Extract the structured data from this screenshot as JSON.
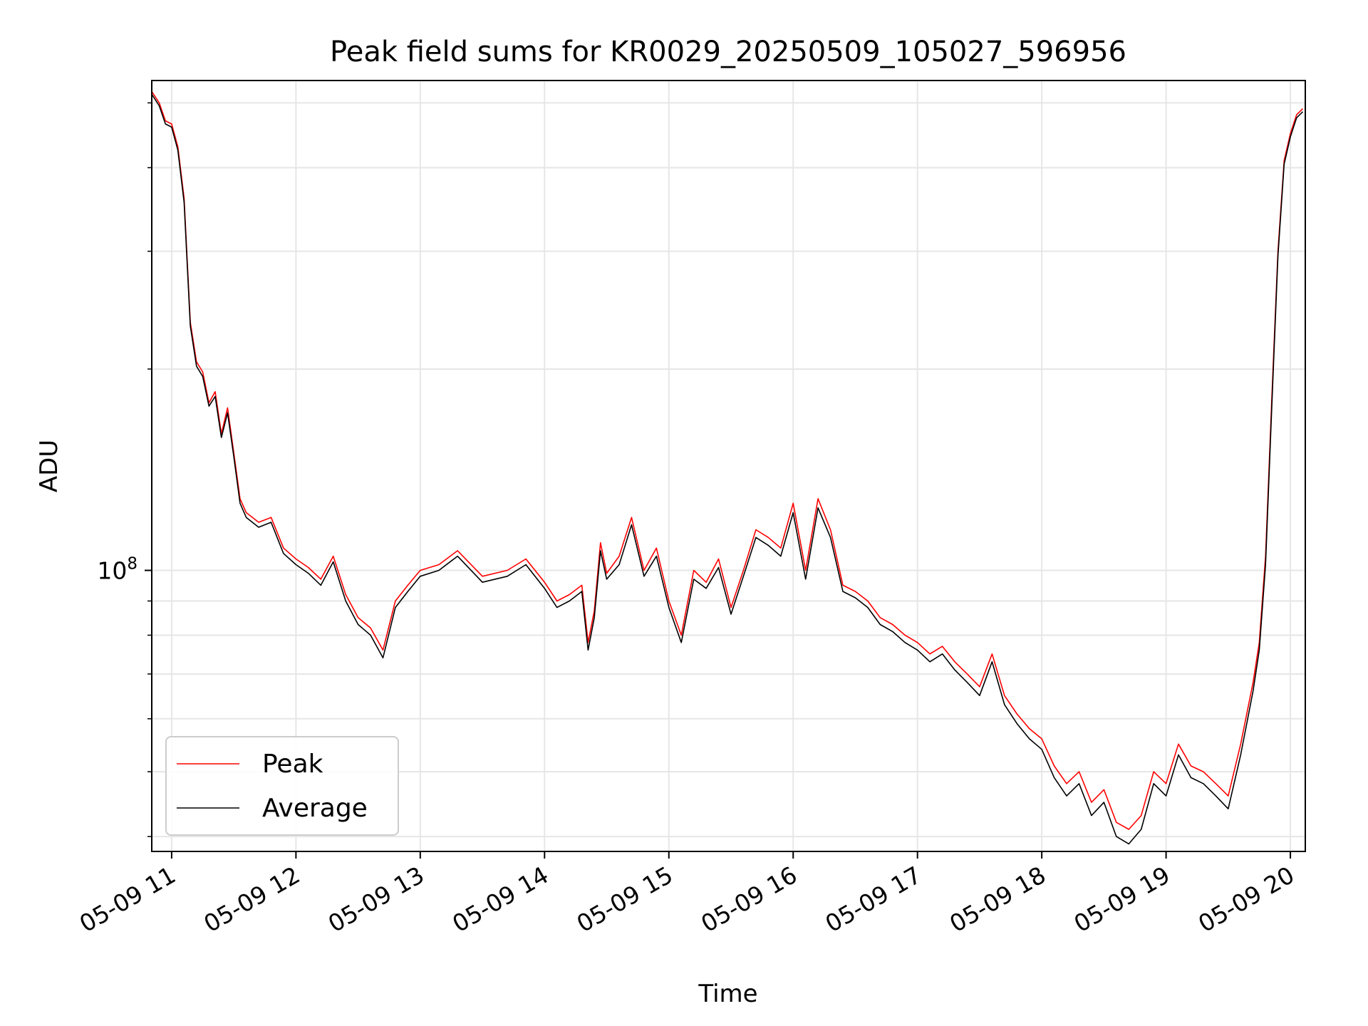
{
  "chart_data": {
    "type": "line",
    "title": "Peak field sums for KR0029_20250509_105027_596956",
    "xlabel": "Time",
    "ylabel": "ADU",
    "yscale": "log",
    "ylim": [
      38000000,
      540000000
    ],
    "xlim": [
      10.84,
      20.12
    ],
    "x_unit": "hour of day 2025-05-09",
    "grid": true,
    "legend_position": "lower-left",
    "x_ticks": [
      {
        "value": 11,
        "label": "05-09 11"
      },
      {
        "value": 12,
        "label": "05-09 12"
      },
      {
        "value": 13,
        "label": "05-09 13"
      },
      {
        "value": 14,
        "label": "05-09 14"
      },
      {
        "value": 15,
        "label": "05-09 15"
      },
      {
        "value": 16,
        "label": "05-09 16"
      },
      {
        "value": 17,
        "label": "05-09 17"
      },
      {
        "value": 18,
        "label": "05-09 18"
      },
      {
        "value": 19,
        "label": "05-09 19"
      },
      {
        "value": 20,
        "label": "05-09 20"
      }
    ],
    "y_major_ticks": [
      {
        "value": 100000000,
        "label_base": "10",
        "label_exp": "8"
      }
    ],
    "y_minor_ticks": [
      40000000,
      50000000,
      60000000,
      70000000,
      80000000,
      90000000,
      200000000,
      300000000,
      400000000,
      500000000
    ],
    "series": [
      {
        "name": "Peak",
        "color": "#ff0000",
        "x": [
          10.84,
          10.9,
          10.95,
          11.0,
          11.05,
          11.1,
          11.15,
          11.2,
          11.25,
          11.3,
          11.35,
          11.4,
          11.45,
          11.5,
          11.55,
          11.6,
          11.7,
          11.8,
          11.9,
          12.0,
          12.1,
          12.2,
          12.3,
          12.4,
          12.5,
          12.6,
          12.7,
          12.8,
          12.9,
          13.0,
          13.15,
          13.3,
          13.5,
          13.7,
          13.85,
          14.0,
          14.1,
          14.2,
          14.3,
          14.35,
          14.4,
          14.45,
          14.5,
          14.6,
          14.7,
          14.8,
          14.9,
          15.0,
          15.1,
          15.2,
          15.3,
          15.4,
          15.5,
          15.6,
          15.7,
          15.8,
          15.9,
          16.0,
          16.1,
          16.2,
          16.3,
          16.4,
          16.5,
          16.6,
          16.7,
          16.8,
          16.9,
          17.0,
          17.1,
          17.2,
          17.3,
          17.4,
          17.5,
          17.6,
          17.7,
          17.8,
          17.9,
          18.0,
          18.1,
          18.2,
          18.3,
          18.4,
          18.5,
          18.6,
          18.7,
          18.8,
          18.9,
          19.0,
          19.1,
          19.2,
          19.3,
          19.4,
          19.5,
          19.6,
          19.7,
          19.75,
          19.8,
          19.85,
          19.9,
          19.95,
          20.0,
          20.05,
          20.1
        ],
        "values": [
          520000000,
          500000000,
          470000000,
          465000000,
          430000000,
          360000000,
          235000000,
          205000000,
          198000000,
          178000000,
          185000000,
          160000000,
          175000000,
          150000000,
          128000000,
          122000000,
          118000000,
          120000000,
          108000000,
          104000000,
          101000000,
          97000000,
          105000000,
          92000000,
          85000000,
          82000000,
          76000000,
          90000000,
          95000000,
          100000000,
          102000000,
          107000000,
          98000000,
          100000000,
          104000000,
          96000000,
          90000000,
          92000000,
          95000000,
          78000000,
          87000000,
          110000000,
          99000000,
          105000000,
          120000000,
          100000000,
          108000000,
          90000000,
          80000000,
          100000000,
          96000000,
          104000000,
          88000000,
          100000000,
          115000000,
          112000000,
          108000000,
          126000000,
          100000000,
          128000000,
          115000000,
          95000000,
          93000000,
          90000000,
          85000000,
          83000000,
          80000000,
          78000000,
          75000000,
          77000000,
          73000000,
          70000000,
          67000000,
          75000000,
          65000000,
          61000000,
          58000000,
          56000000,
          51000000,
          48000000,
          50000000,
          45000000,
          47000000,
          42000000,
          41000000,
          43000000,
          50000000,
          48000000,
          55000000,
          51000000,
          50000000,
          48000000,
          46000000,
          55000000,
          68000000,
          78000000,
          105000000,
          180000000,
          300000000,
          410000000,
          450000000,
          480000000,
          490000000
        ]
      },
      {
        "name": "Average",
        "color": "#000000",
        "x": [
          10.84,
          10.9,
          10.95,
          11.0,
          11.05,
          11.1,
          11.15,
          11.2,
          11.25,
          11.3,
          11.35,
          11.4,
          11.45,
          11.5,
          11.55,
          11.6,
          11.7,
          11.8,
          11.9,
          12.0,
          12.1,
          12.2,
          12.3,
          12.4,
          12.5,
          12.6,
          12.7,
          12.8,
          12.9,
          13.0,
          13.15,
          13.3,
          13.5,
          13.7,
          13.85,
          14.0,
          14.1,
          14.2,
          14.3,
          14.35,
          14.4,
          14.45,
          14.5,
          14.6,
          14.7,
          14.8,
          14.9,
          15.0,
          15.1,
          15.2,
          15.3,
          15.4,
          15.5,
          15.6,
          15.7,
          15.8,
          15.9,
          16.0,
          16.1,
          16.2,
          16.3,
          16.4,
          16.5,
          16.6,
          16.7,
          16.8,
          16.9,
          17.0,
          17.1,
          17.2,
          17.3,
          17.4,
          17.5,
          17.6,
          17.7,
          17.8,
          17.9,
          18.0,
          18.1,
          18.2,
          18.3,
          18.4,
          18.5,
          18.6,
          18.7,
          18.8,
          18.9,
          19.0,
          19.1,
          19.2,
          19.3,
          19.4,
          19.5,
          19.6,
          19.7,
          19.75,
          19.8,
          19.85,
          19.9,
          19.95,
          20.0,
          20.05,
          20.1
        ],
        "values": [
          515000000,
          495000000,
          465000000,
          460000000,
          425000000,
          355000000,
          232000000,
          202000000,
          195000000,
          176000000,
          182000000,
          158000000,
          172000000,
          148000000,
          126000000,
          120000000,
          116000000,
          118000000,
          106000000,
          102000000,
          99000000,
          95000000,
          103000000,
          90000000,
          83000000,
          80000000,
          74000000,
          88000000,
          93000000,
          98000000,
          100000000,
          105000000,
          96000000,
          98000000,
          102000000,
          94000000,
          88000000,
          90000000,
          93000000,
          76000000,
          85000000,
          107000000,
          97000000,
          102000000,
          117000000,
          98000000,
          105000000,
          88000000,
          78000000,
          97000000,
          94000000,
          101000000,
          86000000,
          98000000,
          112000000,
          109000000,
          105000000,
          122000000,
          97000000,
          124000000,
          112000000,
          93000000,
          91000000,
          88000000,
          83000000,
          81000000,
          78000000,
          76000000,
          73000000,
          75000000,
          71000000,
          68000000,
          65000000,
          73000000,
          63000000,
          59000000,
          56000000,
          54000000,
          49000000,
          46000000,
          48000000,
          43000000,
          45000000,
          40000000,
          39000000,
          41000000,
          48000000,
          46000000,
          53000000,
          49000000,
          48000000,
          46000000,
          44000000,
          53000000,
          66000000,
          76000000,
          102000000,
          175000000,
          295000000,
          405000000,
          445000000,
          475000000,
          485000000
        ]
      }
    ]
  }
}
